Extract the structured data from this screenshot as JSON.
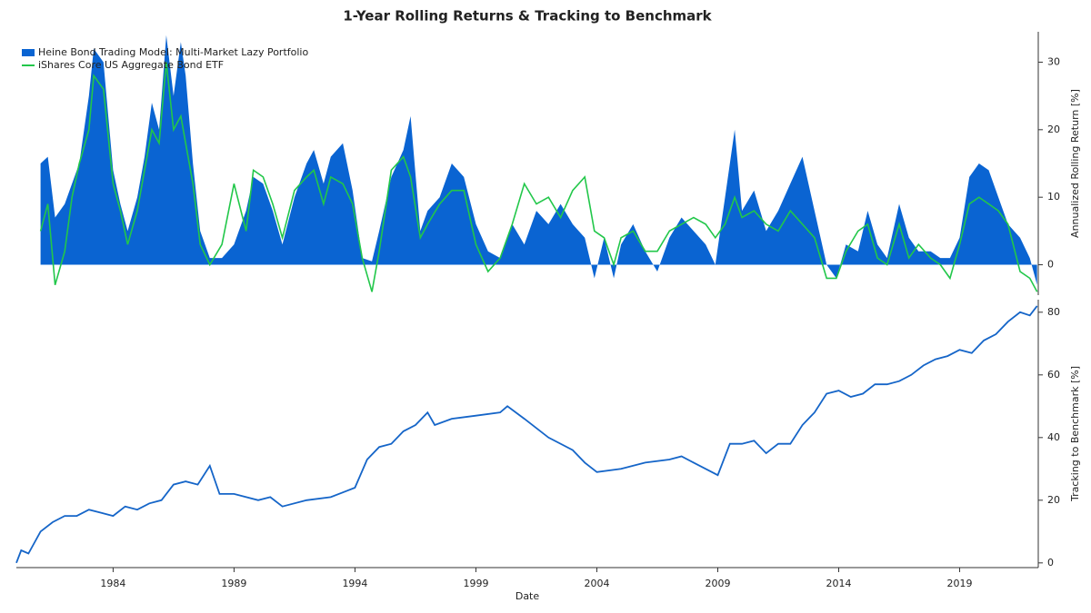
{
  "title": "1-Year Rolling Returns & Tracking to Benchmark",
  "chart_data": [
    {
      "type": "area",
      "ylabel": "Annualized Rolling Return [%]",
      "xlim": [
        1980,
        2022.25
      ],
      "ylim": [
        -4.5,
        34.5
      ],
      "yticks": [
        0,
        10,
        20,
        30
      ],
      "legend": "top-left",
      "x": [
        1981.0,
        1981.3,
        1981.6,
        1982.0,
        1982.3,
        1982.6,
        1983.0,
        1983.2,
        1983.6,
        1984.0,
        1984.3,
        1984.6,
        1985.0,
        1985.3,
        1985.6,
        1985.9,
        1986.2,
        1986.5,
        1986.8,
        1987.0,
        1987.3,
        1987.6,
        1988.0,
        1988.5,
        1989.0,
        1989.5,
        1989.8,
        1990.2,
        1990.6,
        1991.0,
        1991.5,
        1992.0,
        1992.3,
        1992.7,
        1993.0,
        1993.5,
        1993.9,
        1994.3,
        1994.7,
        1995.0,
        1995.5,
        1996.0,
        1996.3,
        1996.7,
        1997.0,
        1997.5,
        1998.0,
        1998.5,
        1999.0,
        1999.5,
        2000.0,
        2000.5,
        2001.0,
        2001.5,
        2002.0,
        2002.5,
        2003.0,
        2003.5,
        2003.9,
        2004.3,
        2004.7,
        2005.0,
        2005.5,
        2006.0,
        2006.5,
        2007.0,
        2007.5,
        2008.0,
        2008.5,
        2008.9,
        2009.3,
        2009.7,
        2010.0,
        2010.5,
        2011.0,
        2011.5,
        2012.0,
        2012.5,
        2013.0,
        2013.5,
        2013.9,
        2014.3,
        2014.8,
        2015.2,
        2015.6,
        2016.0,
        2016.5,
        2016.9,
        2017.3,
        2017.8,
        2018.2,
        2018.6,
        2019.0,
        2019.4,
        2019.8,
        2020.2,
        2020.6,
        2021.0,
        2021.5,
        2021.9,
        2022.2
      ],
      "series": [
        {
          "name": "Heine Bond Trading Model: Multi-Market Lazy Portfolio",
          "color": "#0a64d2",
          "kind": "area",
          "values": [
            15,
            16,
            7,
            9,
            12,
            15,
            25,
            32,
            30,
            14,
            9,
            5,
            10,
            16,
            24,
            20,
            34,
            25,
            33,
            28,
            15,
            5,
            1,
            1,
            3,
            8,
            13,
            12,
            8,
            3,
            10,
            15,
            17,
            12,
            16,
            18,
            11,
            1,
            0.5,
            5,
            13,
            17,
            22,
            5,
            8,
            10,
            15,
            13,
            6,
            2,
            1,
            6,
            3,
            8,
            6,
            9,
            6,
            4,
            -2,
            4,
            -2,
            3,
            6,
            2,
            -1,
            4,
            7,
            5,
            3,
            0,
            10,
            20,
            8,
            11,
            5,
            8,
            12,
            16,
            8,
            0,
            -2,
            3,
            2,
            8,
            3,
            1,
            9,
            4,
            2,
            2,
            1,
            1,
            4,
            13,
            15,
            14,
            10,
            6,
            4,
            1,
            -3
          ]
        },
        {
          "name": "iShares Core US Aggregate Bond ETF",
          "color": "#22c74a",
          "kind": "line",
          "values": [
            5,
            9,
            -3,
            2,
            10,
            15,
            20,
            28,
            26,
            12,
            8,
            3,
            8,
            14,
            20,
            18,
            30,
            20,
            22,
            18,
            12,
            3,
            0,
            3,
            12,
            5,
            14,
            13,
            9,
            4,
            11,
            13,
            14,
            9,
            13,
            12,
            9,
            1,
            -4,
            2,
            14,
            16,
            13,
            4,
            6,
            9,
            11,
            11,
            3,
            -1,
            1,
            6,
            12,
            9,
            10,
            7,
            11,
            13,
            5,
            4,
            0,
            4,
            5,
            2,
            2,
            5,
            6,
            7,
            6,
            4,
            6,
            10,
            7,
            8,
            6,
            5,
            8,
            6,
            4,
            -2,
            -2,
            2,
            5,
            6,
            1,
            0,
            6,
            1,
            3,
            1,
            0,
            -2,
            3,
            9,
            10,
            9,
            8,
            6,
            -1,
            -2,
            -4
          ]
        }
      ]
    },
    {
      "type": "line",
      "ylabel": "Tracking to Benchmark [%]",
      "xlabel": "Date",
      "xlim": [
        1980,
        2022.25
      ],
      "ylim": [
        -1.5,
        84
      ],
      "yticks": [
        0,
        20,
        40,
        60,
        80
      ],
      "xticks": [
        1984,
        1989,
        1994,
        1999,
        2004,
        2009,
        2014,
        2019
      ],
      "x": [
        1980.0,
        1980.2,
        1980.5,
        1981.0,
        1981.5,
        1982.0,
        1982.5,
        1983.0,
        1983.5,
        1984.0,
        1984.5,
        1985.0,
        1985.5,
        1986.0,
        1986.5,
        1987.0,
        1987.5,
        1988.0,
        1988.4,
        1989.0,
        1990.0,
        1990.5,
        1991.0,
        1992.0,
        1993.0,
        1994.0,
        1994.5,
        1995.0,
        1995.5,
        1996.0,
        1996.5,
        1997.0,
        1997.3,
        1998.0,
        1999.0,
        2000.0,
        2000.3,
        2001.0,
        2002.0,
        2003.0,
        2003.5,
        2004.0,
        2005.0,
        2006.0,
        2007.0,
        2007.5,
        2008.0,
        2008.5,
        2009.0,
        2009.5,
        2010.0,
        2010.5,
        2011.0,
        2011.5,
        2012.0,
        2012.5,
        2013.0,
        2013.5,
        2014.0,
        2014.5,
        2015.0,
        2015.5,
        2016.0,
        2016.5,
        2017.0,
        2017.5,
        2018.0,
        2018.5,
        2019.0,
        2019.5,
        2020.0,
        2020.5,
        2021.0,
        2021.5,
        2021.9,
        2022.2
      ],
      "color": "#1565c8",
      "values": [
        0,
        4,
        3,
        10,
        13,
        15,
        15,
        17,
        16,
        15,
        18,
        17,
        19,
        20,
        25,
        26,
        25,
        31,
        22,
        22,
        20,
        21,
        18,
        20,
        21,
        24,
        33,
        37,
        38,
        42,
        44,
        48,
        44,
        46,
        47,
        48,
        50,
        46,
        40,
        36,
        32,
        29,
        30,
        32,
        33,
        34,
        32,
        30,
        28,
        38,
        38,
        39,
        35,
        38,
        38,
        44,
        48,
        54,
        55,
        53,
        54,
        57,
        57,
        58,
        60,
        63,
        65,
        66,
        68,
        67,
        71,
        73,
        77,
        80,
        79,
        82
      ]
    }
  ]
}
